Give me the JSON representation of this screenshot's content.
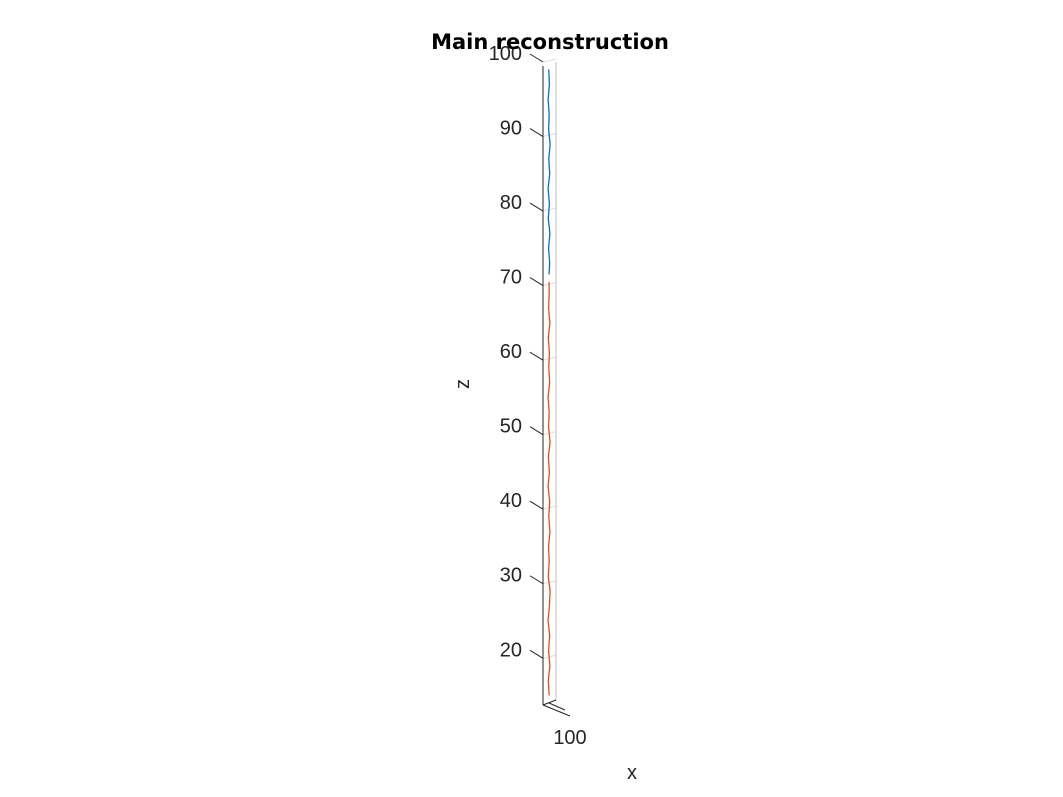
{
  "chart_data": {
    "type": "line",
    "title": "Main reconstruction",
    "zlabel": "z",
    "xlabel": "x",
    "ylabel": "",
    "zlim": [
      14,
      100
    ],
    "z_ticks": [
      20,
      30,
      40,
      50,
      60,
      70,
      80,
      90,
      100
    ],
    "x_ticks": [
      "100"
    ],
    "grid": true,
    "colors": {
      "series1": "#0072BD",
      "series2": "#D95319",
      "axis": "#262626",
      "grid": "#DCDCDC"
    },
    "series": [
      {
        "z": [
          71.5,
          73,
          75,
          77,
          79,
          81,
          83,
          85,
          87,
          89,
          91,
          93,
          95,
          97,
          99
        ],
        "offset": [
          0.0,
          0.3,
          -0.2,
          0.4,
          -0.3,
          0.2,
          -0.4,
          0.3,
          -0.1,
          0.5,
          -0.2,
          0.1,
          -0.4,
          0.2,
          -0.1
        ]
      },
      {
        "z": [
          15,
          17,
          19,
          21,
          23,
          25,
          27,
          29,
          31,
          33,
          35,
          37,
          39,
          41,
          43,
          45,
          47,
          49,
          51,
          53,
          55,
          57,
          59,
          61,
          63,
          65,
          67,
          69,
          70.5
        ],
        "offset": [
          0.1,
          -0.3,
          0.4,
          -0.2,
          0.3,
          -0.4,
          0.2,
          0.5,
          -0.3,
          0.1,
          -0.2,
          0.4,
          -0.1,
          0.3,
          -0.4,
          0.2,
          -0.3,
          0.5,
          -0.2,
          0.1,
          -0.4,
          0.3,
          -0.1,
          0.2,
          -0.3,
          0.4,
          -0.2,
          0.1,
          0.0
        ]
      }
    ]
  }
}
